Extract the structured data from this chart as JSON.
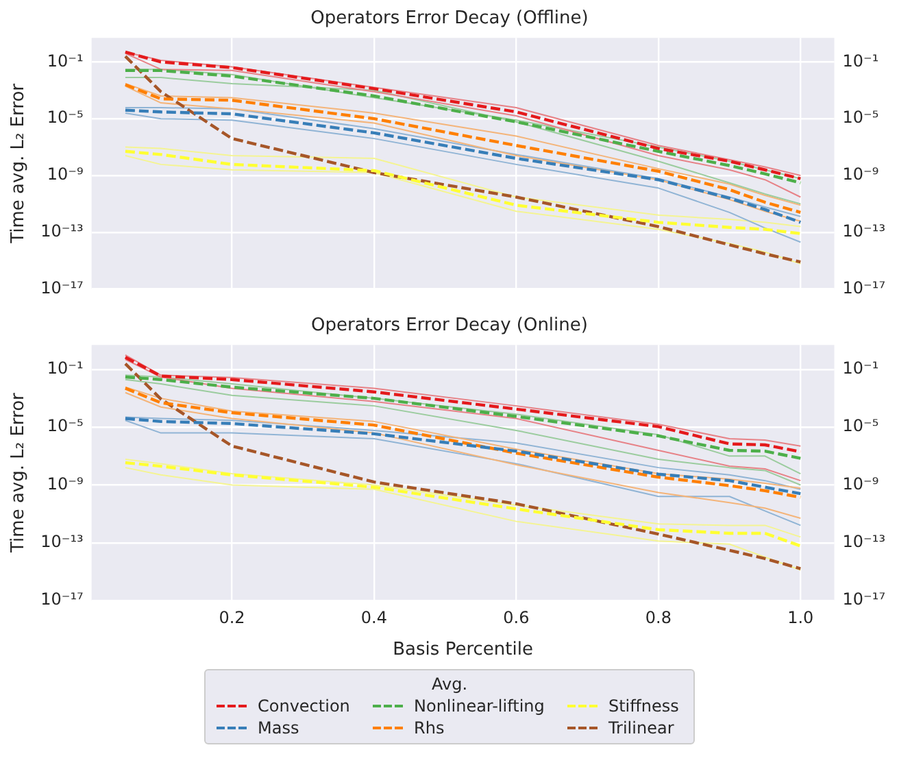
{
  "chart_data": [
    {
      "type": "line",
      "title": "Operators Error Decay (Offline)",
      "ylabel": "Time avg. L₂ Error",
      "x": [
        0.05,
        0.1,
        0.2,
        0.4,
        0.6,
        0.8,
        0.9,
        0.95,
        1.0
      ],
      "xlim": [
        0.0025,
        1.0475
      ],
      "xticks": [
        0.2,
        0.4,
        0.6,
        0.8,
        1
      ],
      "log": "y",
      "ylim": [
        1e-17,
        5
      ],
      "yticks": [
        {
          "value": 0.1,
          "label": "10⁻¹"
        },
        {
          "value": 1e-05,
          "label": "10⁻⁵"
        },
        {
          "value": 1e-09,
          "label": "10⁻⁹"
        },
        {
          "value": 1e-13,
          "label": "10⁻¹³"
        },
        {
          "value": 1e-17,
          "label": "10⁻¹⁷"
        }
      ],
      "grid": true,
      "tick_labels": "y",
      "marker": "none",
      "series": [
        {
          "color": "#e41a1c",
          "line_style": "dashed",
          "values": [
            0.5,
            0.1,
            0.04,
            0.0013,
            3e-05,
            8e-08,
            1e-08,
            2.5e-09,
            6e-10
          ]
        },
        {
          "color": "#377eb8",
          "line_style": "dashed",
          "values": [
            4e-05,
            3e-05,
            2.2e-05,
            1e-06,
            1.6e-08,
            5e-10,
            2.5e-11,
            4e-12,
            5e-13
          ]
        },
        {
          "color": "#4daf4a",
          "line_style": "dashed",
          "values": [
            0.025,
            0.025,
            0.01,
            0.0004,
            6e-06,
            5e-08,
            5e-09,
            1.3e-09,
            3e-10
          ]
        },
        {
          "color": "#ff7f00",
          "line_style": "dashed",
          "values": [
            0.0025,
            0.00025,
            0.0002,
            1e-05,
            1.3e-07,
            2e-09,
            1e-10,
            1.3e-11,
            2.5e-12
          ]
        },
        {
          "color": "#ffff33",
          "line_style": "dashed",
          "values": [
            5e-08,
            3e-08,
            6e-09,
            2.2e-09,
            8e-12,
            5e-13,
            2.2e-13,
            1.6e-13,
            8e-14
          ]
        },
        {
          "color": "#a65628",
          "line_style": "dashed",
          "values": [
            0.25,
            0.0008,
            4e-07,
            1.6e-09,
            3e-11,
            2.5e-13,
            1.3e-14,
            3e-15,
            8e-16
          ]
        },
        {
          "color": "#e78287",
          "line_style": "solid",
          "values": [
            0.5,
            0.13,
            0.045,
            0.0016,
            6e-05,
            1.3e-07,
            1.3e-08,
            4e-09,
            1e-09
          ]
        },
        {
          "color": "#e78287",
          "line_style": "solid",
          "values": [
            0.4,
            0.03,
            0.025,
            0.0008,
            1.6e-05,
            2.5e-08,
            2.5e-09,
            5e-10,
            3e-11
          ]
        },
        {
          "color": "#9bcc9e",
          "line_style": "solid",
          "values": [
            0.03,
            0.03,
            0.013,
            0.0003,
            8e-06,
            1e-07,
            1e-08,
            2.5e-09,
            6e-10
          ]
        },
        {
          "color": "#9bcc9e",
          "line_style": "solid",
          "values": [
            0.008,
            0.008,
            0.003,
            0.001,
            6e-06,
            1e-08,
            3e-10,
            5e-11,
            1e-11
          ]
        },
        {
          "color": "#f4b479",
          "line_style": "solid",
          "values": [
            0.003,
            0.0004,
            0.0003,
            2.5e-05,
            6e-07,
            3e-09,
            2.5e-10,
            4e-11,
            8e-12
          ]
        },
        {
          "color": "#f4b479",
          "line_style": "solid",
          "values": [
            0.002,
            0.00013,
            5e-05,
            5e-06,
            2.5e-08,
            5e-10,
            2e-11,
            3e-12,
            6e-13
          ]
        },
        {
          "color": "#90b4d5",
          "line_style": "solid",
          "values": [
            6e-05,
            6e-05,
            5e-05,
            2e-06,
            3e-08,
            6e-10,
            3e-11,
            6e-12,
            1.3e-12
          ]
        },
        {
          "color": "#90b4d5",
          "line_style": "solid",
          "values": [
            2.5e-05,
            1e-05,
            8e-06,
            4e-07,
            6e-09,
            1.3e-10,
            2.5e-12,
            2e-13,
            2e-14
          ]
        },
        {
          "color": "#f4f492",
          "line_style": "solid",
          "values": [
            1e-07,
            8e-08,
            2.5e-08,
            1.6e-08,
            3e-11,
            1.6e-12,
            8e-13,
            5e-13,
            2.5e-13
          ]
        },
        {
          "color": "#f4f492",
          "line_style": "solid",
          "values": [
            2.5e-08,
            6e-09,
            2.5e-09,
            1.6e-09,
            3e-12,
            1.6e-13,
            1.6e-14,
            4e-15,
            6e-16
          ]
        }
      ]
    },
    {
      "type": "line",
      "title": "Operators Error Decay (Online)",
      "xlabel": "Basis Percentile",
      "ylabel": "Time avg. L₂ Error",
      "x": [
        0.05,
        0.1,
        0.2,
        0.4,
        0.6,
        0.8,
        0.9,
        0.95,
        1.0
      ],
      "xlim": [
        0.0025,
        1.0475
      ],
      "xticks": [
        0.2,
        0.4,
        0.6,
        0.8,
        {
          "value": 1,
          "label": "1.0"
        }
      ],
      "log": "y",
      "ylim": [
        1e-17,
        5
      ],
      "yticks": [
        {
          "value": 0.1,
          "label": "10⁻¹"
        },
        {
          "value": 1e-05,
          "label": "10⁻⁵"
        },
        {
          "value": 1e-09,
          "label": "10⁻⁹"
        },
        {
          "value": 1e-13,
          "label": "10⁻¹³"
        },
        {
          "value": 1e-17,
          "label": "10⁻¹⁷"
        }
      ],
      "grid": true,
      "marker": "none",
      "legend": "bottom",
      "legend_title": "Avg.",
      "series": [
        {
          "name": "Convection",
          "color": "#e41a1c",
          "line_style": "dashed",
          "values": [
            0.7,
            0.035,
            0.02,
            0.0028,
            0.00018,
            1.1e-05,
            7e-07,
            6e-07,
            2e-07
          ]
        },
        {
          "name": "Mass",
          "color": "#377eb8",
          "line_style": "dashed",
          "values": [
            4e-05,
            2.5e-05,
            1.8e-05,
            3.5e-06,
            2.2e-07,
            5.6e-09,
            2e-09,
            7e-10,
            2.5e-10
          ]
        },
        {
          "name": "Nonlinear-lifting",
          "color": "#4daf4a",
          "line_style": "dashed",
          "values": [
            0.03,
            0.02,
            0.006,
            0.001,
            5.6e-05,
            2.5e-06,
            2.5e-07,
            2.2e-07,
            7e-08
          ]
        },
        {
          "name": "Rhs",
          "color": "#ff7f00",
          "line_style": "dashed",
          "values": [
            0.005,
            0.0005,
            0.0001,
            1.4e-05,
            1.6e-07,
            3.5e-09,
            9e-10,
            4e-10,
            1.4e-10
          ]
        },
        {
          "name": "Stiffness",
          "color": "#ffff33",
          "line_style": "dashed",
          "values": [
            3.5e-08,
            2e-08,
            5e-09,
            7e-10,
            2.2e-11,
            8e-13,
            4.5e-13,
            4.5e-13,
            6e-14
          ]
        },
        {
          "name": "Trilinear",
          "color": "#a65628",
          "line_style": "dashed",
          "values": [
            0.25,
            0.0009,
            5e-07,
            1.6e-09,
            5e-11,
            4e-13,
            3e-14,
            8e-15,
            1.6e-15
          ]
        },
        {
          "color": "#e78287",
          "line_style": "solid",
          "values": [
            1,
            0.04,
            0.028,
            0.005,
            0.0003,
            1.6e-05,
            1.6e-06,
            1.3e-06,
            5e-07
          ]
        },
        {
          "color": "#e78287",
          "line_style": "solid",
          "values": [
            0.5,
            0.03,
            0.005,
            0.0006,
            4e-05,
            2.5e-07,
            2e-08,
            1.3e-08,
            2e-09
          ]
        },
        {
          "color": "#9bcc9e",
          "line_style": "solid",
          "values": [
            0.04,
            0.03,
            0.01,
            0.001,
            8e-05,
            3e-06,
            1e-07,
            1e-07,
            6e-09
          ]
        },
        {
          "color": "#9bcc9e",
          "line_style": "solid",
          "values": [
            0.02,
            0.01,
            0.0016,
            0.0003,
            6e-06,
            6e-08,
            1.6e-08,
            1e-08,
            1e-09
          ]
        },
        {
          "color": "#f4b479",
          "line_style": "solid",
          "values": [
            0.006,
            0.001,
            0.00013,
            2.5e-05,
            3e-07,
            6e-09,
            2.5e-09,
            1.3e-09,
            6e-10
          ]
        },
        {
          "color": "#f4b479",
          "line_style": "solid",
          "values": [
            0.0025,
            0.00025,
            4e-05,
            4e-06,
            2.5e-08,
            3e-10,
            6e-11,
            2.5e-11,
            5e-12
          ]
        },
        {
          "color": "#90b4d5",
          "line_style": "solid",
          "values": [
            5e-05,
            4e-05,
            3e-05,
            6e-06,
            8e-07,
            1.6e-08,
            5e-09,
            2e-09,
            5e-10
          ]
        },
        {
          "color": "#90b4d5",
          "line_style": "solid",
          "values": [
            3e-05,
            4e-06,
            4e-06,
            1.6e-06,
            3e-08,
            1.6e-10,
            1.6e-10,
            1.6e-11,
            1.6e-12
          ]
        },
        {
          "color": "#f4f492",
          "line_style": "solid",
          "values": [
            6e-08,
            3e-08,
            6e-09,
            1e-09,
            4e-11,
            2e-12,
            1.6e-12,
            1.6e-12,
            2.5e-13
          ]
        },
        {
          "color": "#f4f492",
          "line_style": "solid",
          "values": [
            1.6e-08,
            5e-09,
            1e-09,
            5e-10,
            3e-12,
            1.3e-13,
            8e-14,
            1e-14,
            1.3e-15
          ]
        }
      ]
    }
  ]
}
